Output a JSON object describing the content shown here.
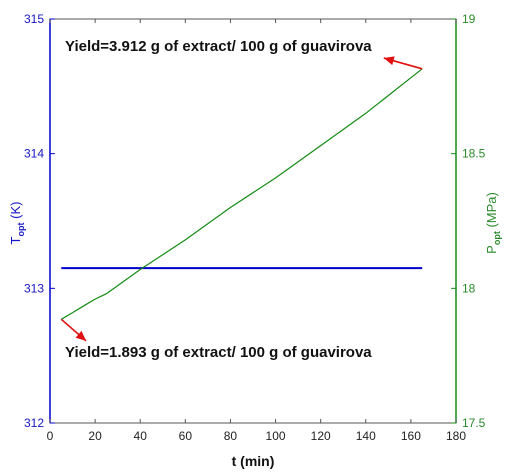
{
  "chart_data": {
    "type": "line",
    "x": {
      "label": "t (min)",
      "range": [
        0,
        180
      ],
      "ticks": [
        "0",
        "20",
        "40",
        "60",
        "80",
        "100",
        "120",
        "140",
        "160",
        "180"
      ]
    },
    "y_left": {
      "label_main": "T",
      "label_sub": "opt",
      "label_unit": " (K)",
      "range": [
        312,
        315
      ],
      "ticks": [
        "312",
        "313",
        "314",
        "315"
      ],
      "color": "#0000cc"
    },
    "y_right": {
      "label_main": "P",
      "label_sub": "opt",
      "label_unit": " (MPa)",
      "range": [
        17.5,
        19
      ],
      "ticks": [
        "17.5",
        "18",
        "18.5",
        "19"
      ],
      "color": "#138a13"
    },
    "series": [
      {
        "axis": "left",
        "color": "#0000cc",
        "x": [
          5,
          165
        ],
        "y": [
          313.15,
          313.15
        ]
      },
      {
        "axis": "right",
        "color": "#138a13",
        "x": [
          5,
          10,
          15,
          20,
          25,
          40,
          60,
          80,
          100,
          120,
          140,
          165
        ],
        "y": [
          17.885,
          17.91,
          17.935,
          17.96,
          17.98,
          18.07,
          18.18,
          18.3,
          18.41,
          18.53,
          18.65,
          18.815
        ]
      }
    ],
    "annotations": [
      {
        "text": "Yield=3.912 g of extract/ 100 g of guavirova",
        "arrow_from": [
          148,
          18.855
        ],
        "arrow_to": [
          165,
          18.815
        ]
      },
      {
        "text": "Yield=1.893 g of extract/ 100 g of guavirova",
        "arrow_from": [
          5,
          17.885
        ],
        "arrow_to": [
          16,
          17.805
        ]
      }
    ],
    "grid": false
  }
}
